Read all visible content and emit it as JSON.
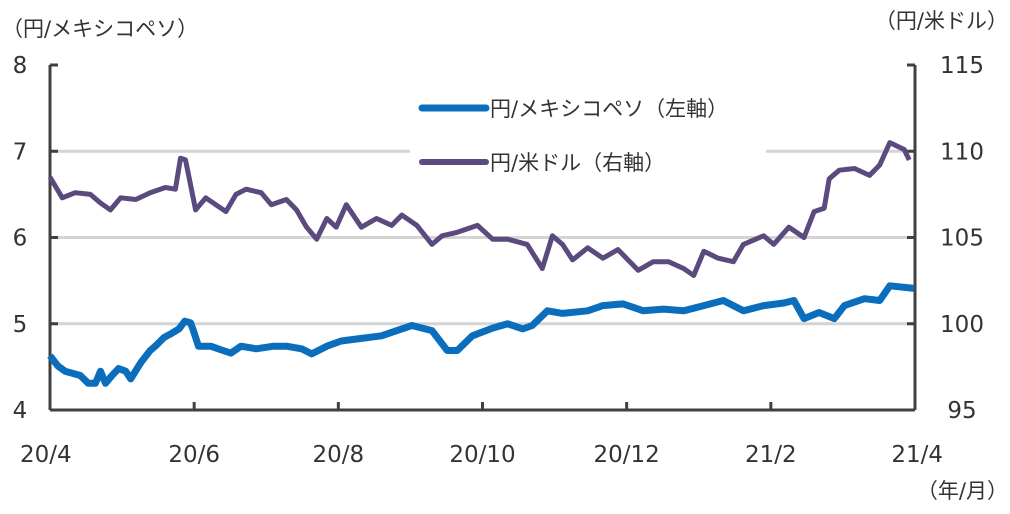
{
  "chart_data": {
    "type": "line",
    "left_axis_label": "（円/メキシコペソ）",
    "right_axis_label": "（円/米ドル）",
    "x_unit_label": "（年/月）",
    "x_ticks": [
      "20/4",
      "20/6",
      "20/8",
      "20/10",
      "20/12",
      "21/2",
      "21/4"
    ],
    "x_note": "x values are months elapsed since 20/4",
    "xlim": [
      0,
      12
    ],
    "left_ylim": [
      4,
      8
    ],
    "left_ticks": [
      "4",
      "5",
      "6",
      "7",
      "8"
    ],
    "right_ylim": [
      95,
      115
    ],
    "right_ticks": [
      "95",
      "100",
      "105",
      "110",
      "115"
    ],
    "grid": true,
    "legend_position": "top-center",
    "series": [
      {
        "name": "円/メキシコペソ（左軸）",
        "axis": "left",
        "color": "#0a6ebd",
        "x": [
          0,
          0.11,
          0.21,
          0.42,
          0.53,
          0.63,
          0.7,
          0.77,
          0.86,
          0.95,
          1.05,
          1.12,
          1.26,
          1.39,
          1.46,
          1.58,
          1.67,
          1.79,
          1.87,
          1.95,
          1.99,
          2.06,
          2.23,
          2.4,
          2.51,
          2.65,
          2.86,
          3.1,
          3.28,
          3.49,
          3.63,
          3.84,
          4.04,
          4.32,
          4.6,
          4.88,
          5.02,
          5.3,
          5.51,
          5.65,
          5.86,
          6.14,
          6.35,
          6.56,
          6.69,
          6.9,
          7.11,
          7.46,
          7.67,
          7.95,
          8.23,
          8.51,
          8.79,
          9.07,
          9.34,
          9.62,
          9.9,
          10.18,
          10.32,
          10.46,
          10.67,
          10.88,
          11.02,
          11.3,
          11.51,
          11.65,
          11.99
        ],
        "values": [
          4.63,
          4.51,
          4.45,
          4.4,
          4.31,
          4.31,
          4.45,
          4.31,
          4.4,
          4.48,
          4.45,
          4.36,
          4.55,
          4.69,
          4.74,
          4.84,
          4.88,
          4.94,
          5.03,
          5.01,
          4.92,
          4.74,
          4.74,
          4.69,
          4.66,
          4.74,
          4.71,
          4.74,
          4.74,
          4.71,
          4.65,
          4.74,
          4.8,
          4.83,
          4.86,
          4.94,
          4.98,
          4.92,
          4.69,
          4.69,
          4.86,
          4.95,
          5.0,
          4.94,
          4.98,
          5.15,
          5.12,
          5.15,
          5.21,
          5.23,
          5.15,
          5.17,
          5.15,
          5.21,
          5.27,
          5.15,
          5.21,
          5.24,
          5.27,
          5.06,
          5.13,
          5.06,
          5.21,
          5.29,
          5.27,
          5.44,
          5.41
        ]
      },
      {
        "name": "円/米ドル（右軸）",
        "axis": "right",
        "color": "#5b4a7e",
        "x": [
          0,
          0.17,
          0.35,
          0.56,
          0.7,
          0.84,
          0.98,
          1.19,
          1.39,
          1.6,
          1.74,
          1.81,
          1.88,
          2.02,
          2.16,
          2.3,
          2.44,
          2.58,
          2.72,
          2.93,
          3.07,
          3.28,
          3.42,
          3.56,
          3.7,
          3.84,
          3.97,
          4.11,
          4.32,
          4.53,
          4.74,
          4.88,
          5.09,
          5.3,
          5.44,
          5.65,
          5.93,
          6.14,
          6.35,
          6.62,
          6.83,
          6.97,
          7.11,
          7.25,
          7.46,
          7.67,
          7.88,
          8.16,
          8.37,
          8.58,
          8.79,
          8.93,
          9.07,
          9.27,
          9.48,
          9.62,
          9.9,
          10.04,
          10.25,
          10.46,
          10.6,
          10.74,
          10.81,
          10.95,
          11.16,
          11.37,
          11.51,
          11.65,
          11.85,
          11.92
        ],
        "values": [
          108.5,
          107.3,
          107.6,
          107.5,
          107.0,
          106.6,
          107.3,
          107.2,
          107.6,
          107.9,
          107.8,
          109.6,
          109.5,
          106.6,
          107.3,
          106.9,
          106.5,
          107.5,
          107.8,
          107.6,
          106.9,
          107.2,
          106.6,
          105.6,
          104.9,
          106.1,
          105.6,
          106.9,
          105.6,
          106.1,
          105.7,
          106.3,
          105.7,
          104.6,
          105.1,
          105.3,
          105.7,
          104.9,
          104.9,
          104.6,
          103.2,
          105.1,
          104.6,
          103.7,
          104.4,
          103.8,
          104.3,
          103.1,
          103.6,
          103.6,
          103.2,
          102.8,
          104.2,
          103.8,
          103.6,
          104.6,
          105.1,
          104.6,
          105.6,
          105.0,
          106.5,
          106.7,
          108.4,
          108.9,
          109.0,
          108.6,
          109.2,
          110.5,
          110.1,
          109.5
        ]
      }
    ]
  }
}
